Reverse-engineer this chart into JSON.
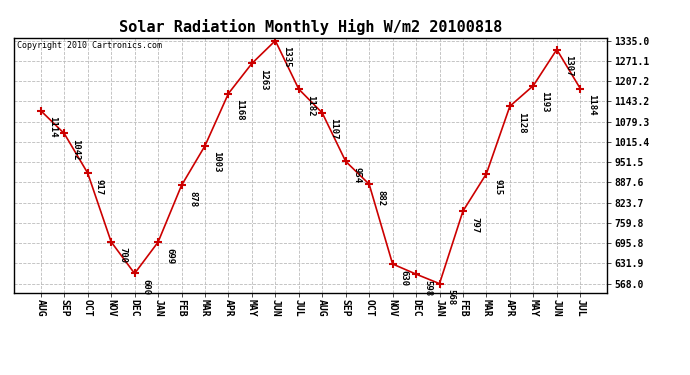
{
  "title": "Solar Radiation Monthly High W/m2 20100818",
  "copyright": "Copyright 2010 Cartronics.com",
  "months": [
    "AUG",
    "SEP",
    "OCT",
    "NOV",
    "DEC",
    "JAN",
    "FEB",
    "MAR",
    "APR",
    "MAY",
    "JUN",
    "JUL",
    "AUG",
    "SEP",
    "OCT",
    "NOV",
    "DEC",
    "JAN",
    "FEB",
    "MAR",
    "APR",
    "MAY",
    "JUN",
    "JUL"
  ],
  "values": [
    1114,
    1042,
    917,
    700,
    600,
    699,
    878,
    1003,
    1168,
    1263,
    1335,
    1182,
    1107,
    954,
    882,
    630,
    598,
    568,
    797,
    915,
    1128,
    1193,
    1307,
    1184
  ],
  "ylim_min": 540.0,
  "ylim_max": 1345.0,
  "yticks": [
    568.0,
    631.9,
    695.8,
    759.8,
    823.7,
    887.6,
    951.5,
    1015.4,
    1079.3,
    1143.2,
    1207.2,
    1271.1,
    1335.0
  ],
  "line_color": "#cc0000",
  "marker_color": "#cc0000",
  "bg_color": "#ffffff",
  "grid_color": "#bbbbbb",
  "title_fontsize": 11,
  "tick_fontsize": 7,
  "annotation_fontsize": 6.5,
  "copyright_fontsize": 6
}
